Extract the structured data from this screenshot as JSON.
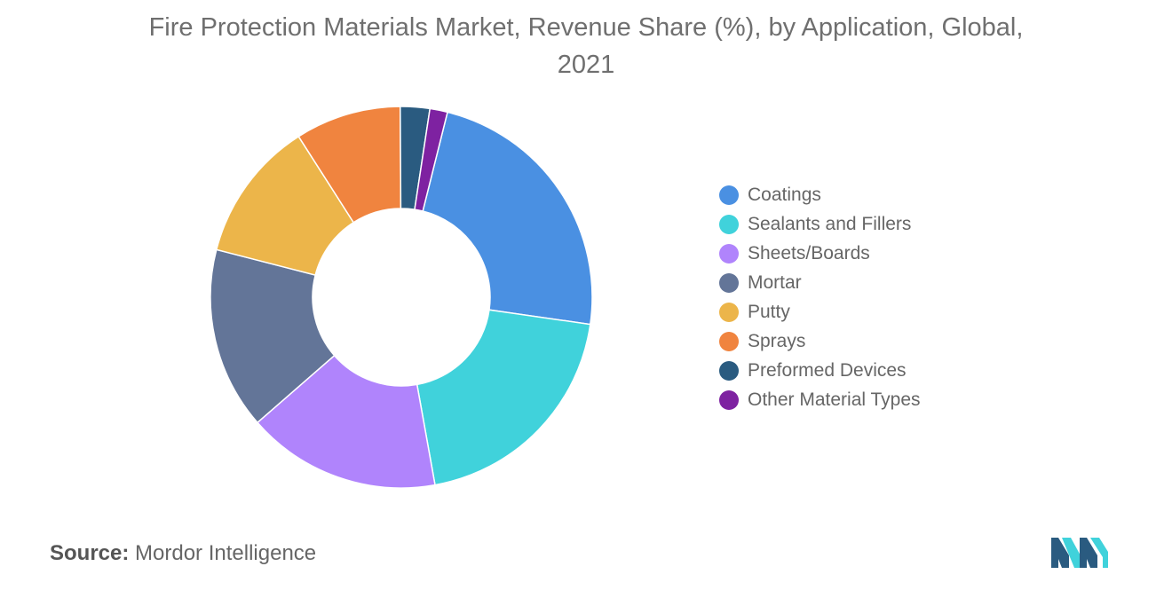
{
  "chart_data": {
    "type": "pie",
    "title": "Fire Protection Materials Market, Revenue Share (%), by Application, Global, 2021",
    "title_lines": [
      "Fire Protection Materials Market, Revenue Share (%), by Application, Global,",
      "2021"
    ],
    "donut": true,
    "legend_position": "right",
    "slices": [
      {
        "label": "Coatings",
        "value": 23.5,
        "color": "#4a90e2"
      },
      {
        "label": "Sealants and Fillers",
        "value": 20.0,
        "color": "#40d2db"
      },
      {
        "label": "Sheets/Boards",
        "value": 16.5,
        "color": "#b084fc"
      },
      {
        "label": "Mortar",
        "value": 15.5,
        "color": "#637598"
      },
      {
        "label": "Putty",
        "value": 12.0,
        "color": "#ecb54a"
      },
      {
        "label": "Sprays",
        "value": 9.0,
        "color": "#f0843f"
      },
      {
        "label": "Preformed Devices",
        "value": 2.5,
        "color": "#2a5b80"
      },
      {
        "label": "Other Material Types",
        "value": 1.5,
        "color": "#7e22a1"
      }
    ]
  },
  "source": {
    "label": "Source:",
    "text": "Mordor Intelligence"
  },
  "logo": {
    "icon": "mordor-intelligence-logo-icon",
    "colors": [
      "#2a5b80",
      "#40d2db"
    ]
  }
}
